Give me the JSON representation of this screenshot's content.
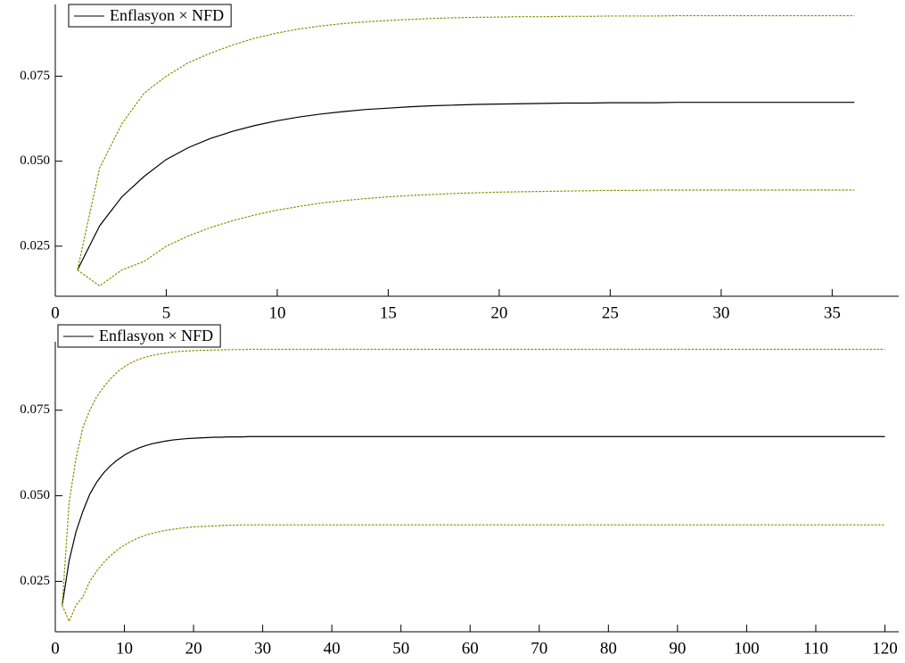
{
  "chart_data": [
    {
      "type": "line",
      "x": [
        1,
        2,
        3,
        4,
        5,
        6,
        7,
        8,
        9,
        10,
        11,
        12,
        13,
        14,
        15,
        16,
        17,
        18,
        19,
        20,
        21,
        22,
        23,
        24,
        25,
        26,
        27,
        28,
        29,
        30,
        31,
        32,
        33,
        34,
        35,
        36
      ],
      "series": [
        {
          "name": "Enflasyon × NFD",
          "color": "#000000",
          "dash": false,
          "values": [
            0.018,
            0.031,
            0.0395,
            0.0455,
            0.0505,
            0.054,
            0.0567,
            0.0588,
            0.0605,
            0.0619,
            0.063,
            0.0639,
            0.0646,
            0.0652,
            0.0656,
            0.066,
            0.0663,
            0.0665,
            0.0667,
            0.0668,
            0.0669,
            0.067,
            0.0671,
            0.0671,
            0.0672,
            0.0672,
            0.0672,
            0.0673,
            0.0673,
            0.0673,
            0.0673,
            0.0673,
            0.0673,
            0.0673,
            0.0673,
            0.0673
          ]
        },
        {
          "color": "#8c8c00",
          "dash": true,
          "values": [
            0.018,
            0.048,
            0.061,
            0.07,
            0.075,
            0.079,
            0.0818,
            0.0842,
            0.0862,
            0.0877,
            0.0889,
            0.0898,
            0.0905,
            0.091,
            0.0914,
            0.0917,
            0.092,
            0.0922,
            0.0923,
            0.0924,
            0.0925,
            0.0925,
            0.0926,
            0.0926,
            0.0927,
            0.0927,
            0.0927,
            0.0928,
            0.0928,
            0.0928,
            0.0928,
            0.0928,
            0.0928,
            0.0928,
            0.0928,
            0.0928
          ]
        },
        {
          "color": "#8c8c00",
          "dash": true,
          "values": [
            0.018,
            0.0133,
            0.018,
            0.0205,
            0.025,
            0.028,
            0.0305,
            0.0325,
            0.0342,
            0.0356,
            0.0367,
            0.0377,
            0.0384,
            0.039,
            0.0395,
            0.0399,
            0.0402,
            0.0405,
            0.0407,
            0.0409,
            0.041,
            0.0411,
            0.0412,
            0.0413,
            0.0414,
            0.0414,
            0.0415,
            0.0415,
            0.0415,
            0.0415,
            0.0415,
            0.0415,
            0.0415,
            0.0415,
            0.0415,
            0.0415
          ]
        }
      ],
      "xlim": [
        0,
        38
      ],
      "xticks": [
        0,
        5,
        10,
        15,
        20,
        25,
        30,
        35
      ],
      "ylim": [
        0.01026,
        0.0961
      ],
      "yticks": [
        {
          "value": 0.025,
          "label": "0.025"
        },
        {
          "value": 0.05,
          "label": "0.050"
        },
        {
          "value": 0.075,
          "label": "0.075"
        }
      ]
    },
    {
      "type": "line",
      "x": [
        1,
        2,
        3,
        4,
        5,
        6,
        7,
        8,
        9,
        10,
        11,
        12,
        13,
        14,
        15,
        16,
        17,
        18,
        19,
        20,
        21,
        22,
        23,
        24,
        25,
        26,
        27,
        28,
        29,
        30,
        31,
        32,
        33,
        34,
        35,
        36,
        37,
        38,
        39,
        40,
        41,
        42,
        43,
        44,
        45,
        46,
        47,
        48,
        49,
        50,
        51,
        52,
        53,
        54,
        55,
        56,
        57,
        58,
        59,
        60,
        61,
        62,
        63,
        64,
        65,
        66,
        67,
        68,
        69,
        70,
        71,
        72,
        73,
        74,
        75,
        76,
        77,
        78,
        79,
        80,
        81,
        82,
        83,
        84,
        85,
        86,
        87,
        88,
        89,
        90,
        91,
        92,
        93,
        94,
        95,
        96,
        97,
        98,
        99,
        100,
        101,
        102,
        103,
        104,
        105,
        106,
        107,
        108,
        109,
        110,
        111,
        112,
        113,
        114,
        115,
        116,
        117,
        118,
        119,
        120
      ],
      "series": [
        {
          "name": "Enflasyon × NFD",
          "color": "#000000",
          "dash": false,
          "values": [
            0.018,
            0.031,
            0.0395,
            0.0455,
            0.0505,
            0.054,
            0.0567,
            0.0588,
            0.0605,
            0.0619,
            0.063,
            0.0639,
            0.0646,
            0.0652,
            0.0656,
            0.066,
            0.0663,
            0.0665,
            0.0667,
            0.0668,
            0.0669,
            0.067,
            0.0671,
            0.0671,
            0.0672,
            0.0672,
            0.0672,
            0.0673,
            0.0673,
            0.0673,
            0.0673,
            0.0673,
            0.0673,
            0.0673,
            0.0673,
            0.0673,
            0.0673,
            0.0673,
            0.0673,
            0.0673,
            0.0673,
            0.0673,
            0.0673,
            0.0673,
            0.0673,
            0.0673,
            0.0673,
            0.0673,
            0.0673,
            0.0673,
            0.0673,
            0.0673,
            0.0673,
            0.0673,
            0.0673,
            0.0673,
            0.0673,
            0.0673,
            0.0673,
            0.0673,
            0.0673,
            0.0673,
            0.0673,
            0.0673,
            0.0673,
            0.0673,
            0.0673,
            0.0673,
            0.0673,
            0.0673,
            0.0673,
            0.0673,
            0.0673,
            0.0673,
            0.0673,
            0.0673,
            0.0673,
            0.0673,
            0.0673,
            0.0673,
            0.0673,
            0.0673,
            0.0673,
            0.0673,
            0.0673,
            0.0673,
            0.0673,
            0.0673,
            0.0673,
            0.0673,
            0.0673,
            0.0673,
            0.0673,
            0.0673,
            0.0673,
            0.0673,
            0.0673,
            0.0673,
            0.0673,
            0.0673,
            0.0673,
            0.0673,
            0.0673,
            0.0673,
            0.0673,
            0.0673,
            0.0673,
            0.0673,
            0.0673,
            0.0673,
            0.0673,
            0.0673,
            0.0673,
            0.0673,
            0.0673,
            0.0673,
            0.0673,
            0.0673,
            0.0673,
            0.0673
          ]
        },
        {
          "color": "#8c8c00",
          "dash": true,
          "values": [
            0.018,
            0.048,
            0.061,
            0.07,
            0.075,
            0.079,
            0.0818,
            0.0842,
            0.0862,
            0.0877,
            0.0889,
            0.0898,
            0.0905,
            0.091,
            0.0914,
            0.0917,
            0.092,
            0.0922,
            0.0923,
            0.0924,
            0.0925,
            0.0925,
            0.0926,
            0.0926,
            0.0927,
            0.0927,
            0.0927,
            0.0928,
            0.0928,
            0.0928,
            0.0928,
            0.0928,
            0.0928,
            0.0928,
            0.0928,
            0.0928,
            0.0928,
            0.0928,
            0.0928,
            0.0928,
            0.0928,
            0.0928,
            0.0928,
            0.0928,
            0.0928,
            0.0928,
            0.0928,
            0.0928,
            0.0928,
            0.0928,
            0.0928,
            0.0928,
            0.0928,
            0.0928,
            0.0928,
            0.0928,
            0.0928,
            0.0928,
            0.0928,
            0.0928,
            0.0928,
            0.0928,
            0.0928,
            0.0928,
            0.0928,
            0.0928,
            0.0928,
            0.0928,
            0.0928,
            0.0928,
            0.0928,
            0.0928,
            0.0928,
            0.0928,
            0.0928,
            0.0928,
            0.0928,
            0.0928,
            0.0928,
            0.0928,
            0.0928,
            0.0928,
            0.0928,
            0.0928,
            0.0928,
            0.0928,
            0.0928,
            0.0928,
            0.0928,
            0.0928,
            0.0928,
            0.0928,
            0.0928,
            0.0928,
            0.0928,
            0.0928,
            0.0928,
            0.0928,
            0.0928,
            0.0928,
            0.0928,
            0.0928,
            0.0928,
            0.0928,
            0.0928,
            0.0928,
            0.0928,
            0.0928,
            0.0928,
            0.0928,
            0.0928,
            0.0928,
            0.0928,
            0.0928,
            0.0928,
            0.0928,
            0.0928,
            0.0928,
            0.0928,
            0.0928
          ]
        },
        {
          "color": "#8c8c00",
          "dash": true,
          "values": [
            0.018,
            0.0133,
            0.018,
            0.0205,
            0.025,
            0.028,
            0.0305,
            0.0325,
            0.0342,
            0.0356,
            0.0367,
            0.0377,
            0.0384,
            0.039,
            0.0395,
            0.0399,
            0.0402,
            0.0405,
            0.0407,
            0.0409,
            0.041,
            0.0411,
            0.0412,
            0.0413,
            0.0414,
            0.0414,
            0.0415,
            0.0415,
            0.0415,
            0.0415,
            0.0415,
            0.0415,
            0.0415,
            0.0415,
            0.0415,
            0.0415,
            0.0415,
            0.0415,
            0.0415,
            0.0415,
            0.0415,
            0.0415,
            0.0415,
            0.0415,
            0.0415,
            0.0415,
            0.0415,
            0.0415,
            0.0415,
            0.0415,
            0.0415,
            0.0415,
            0.0415,
            0.0415,
            0.0415,
            0.0415,
            0.0415,
            0.0415,
            0.0415,
            0.0415,
            0.0415,
            0.0415,
            0.0415,
            0.0415,
            0.0415,
            0.0415,
            0.0415,
            0.0415,
            0.0415,
            0.0415,
            0.0415,
            0.0415,
            0.0415,
            0.0415,
            0.0415,
            0.0415,
            0.0415,
            0.0415,
            0.0415,
            0.0415,
            0.0415,
            0.0415,
            0.0415,
            0.0415,
            0.0415,
            0.0415,
            0.0415,
            0.0415,
            0.0415,
            0.0415,
            0.0415,
            0.0415,
            0.0415,
            0.0415,
            0.0415,
            0.0415,
            0.0415,
            0.0415,
            0.0415,
            0.0415,
            0.0415,
            0.0415,
            0.0415,
            0.0415,
            0.0415,
            0.0415,
            0.0415,
            0.0415,
            0.0415,
            0.0415,
            0.0415,
            0.0415,
            0.0415,
            0.0415,
            0.0415,
            0.0415,
            0.0415,
            0.0415,
            0.0415,
            0.0415
          ]
        }
      ],
      "xlim": [
        0,
        122
      ],
      "xticks": [
        0,
        10,
        20,
        30,
        40,
        50,
        60,
        70,
        80,
        90,
        100,
        110,
        120
      ],
      "ylim": [
        0.01026,
        0.095
      ],
      "yticks": [
        {
          "value": 0.025,
          "label": "0.025"
        },
        {
          "value": 0.05,
          "label": "0.050"
        },
        {
          "value": 0.075,
          "label": "0.075"
        }
      ]
    }
  ]
}
